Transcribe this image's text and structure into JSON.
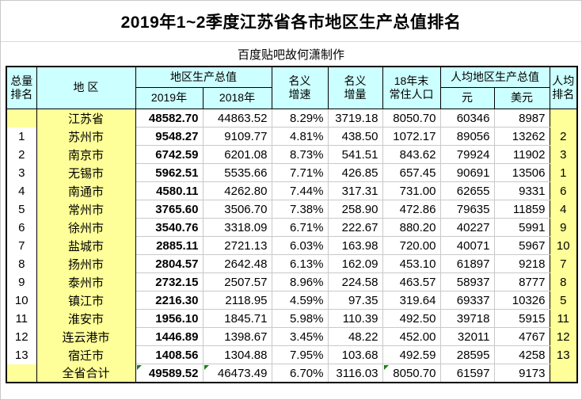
{
  "colors": {
    "header_bg": "#CCFFFF",
    "highlight_bg": "#FFFF99",
    "grid_line": "#C9C9C9",
    "table_border": "#000000",
    "comment_flag_green": "#1A7A1A"
  },
  "chart_data": {
    "type": "table",
    "title": "2019年1~2季度江苏省各市地区生产总值排名",
    "subtitle": "百度贴吧故何潇制作",
    "header": {
      "rank_total": [
        "总量",
        "排名"
      ],
      "region": "地 区",
      "gdp_group": "地区生产总值",
      "gdp_2019": "2019年",
      "gdp_2018": "2018年",
      "growth": [
        "名义",
        "增速"
      ],
      "increment": [
        "名义",
        "增量"
      ],
      "population": [
        "18年末",
        "常住人口"
      ],
      "percap_group": "人均地区生产总值",
      "percap_yuan": "元",
      "percap_usd": "美元",
      "rank_percap": [
        "人均",
        "排名"
      ]
    },
    "rows": [
      {
        "total_rank": "",
        "region": "江苏省",
        "gdp_2019": "48582.70",
        "gdp_2018": "44863.52",
        "growth": "8.29%",
        "increment": "3719.18",
        "population": "8050.70",
        "percap_yuan": "60346",
        "percap_usd": "8987",
        "percap_rank": "",
        "flags": []
      },
      {
        "total_rank": "1",
        "region": "苏州市",
        "gdp_2019": "9548.27",
        "gdp_2018": "9109.77",
        "growth": "4.81%",
        "increment": "438.50",
        "population": "1072.17",
        "percap_yuan": "89056",
        "percap_usd": "13262",
        "percap_rank": "2",
        "flags": []
      },
      {
        "total_rank": "2",
        "region": "南京市",
        "gdp_2019": "6742.59",
        "gdp_2018": "6201.08",
        "growth": "8.73%",
        "increment": "541.51",
        "population": "843.62",
        "percap_yuan": "79924",
        "percap_usd": "11902",
        "percap_rank": "3",
        "flags": []
      },
      {
        "total_rank": "3",
        "region": "无锡市",
        "gdp_2019": "5962.51",
        "gdp_2018": "5535.66",
        "growth": "7.71%",
        "increment": "426.85",
        "population": "657.45",
        "percap_yuan": "90691",
        "percap_usd": "13506",
        "percap_rank": "1",
        "flags": []
      },
      {
        "total_rank": "4",
        "region": "南通市",
        "gdp_2019": "4580.11",
        "gdp_2018": "4262.80",
        "growth": "7.44%",
        "increment": "317.31",
        "population": "731.00",
        "percap_yuan": "62655",
        "percap_usd": "9331",
        "percap_rank": "6",
        "flags": []
      },
      {
        "total_rank": "5",
        "region": "常州市",
        "gdp_2019": "3765.60",
        "gdp_2018": "3506.70",
        "growth": "7.38%",
        "increment": "258.90",
        "population": "472.86",
        "percap_yuan": "79635",
        "percap_usd": "11859",
        "percap_rank": "4",
        "flags": []
      },
      {
        "total_rank": "6",
        "region": "徐州市",
        "gdp_2019": "3540.76",
        "gdp_2018": "3318.09",
        "growth": "6.71%",
        "increment": "222.67",
        "population": "880.20",
        "percap_yuan": "40227",
        "percap_usd": "5991",
        "percap_rank": "9",
        "flags": []
      },
      {
        "total_rank": "7",
        "region": "盐城市",
        "gdp_2019": "2885.11",
        "gdp_2018": "2721.13",
        "growth": "6.03%",
        "increment": "163.98",
        "population": "720.00",
        "percap_yuan": "40071",
        "percap_usd": "5967",
        "percap_rank": "10",
        "flags": []
      },
      {
        "total_rank": "8",
        "region": "扬州市",
        "gdp_2019": "2804.57",
        "gdp_2018": "2642.48",
        "growth": "6.13%",
        "increment": "162.09",
        "population": "453.10",
        "percap_yuan": "61897",
        "percap_usd": "9218",
        "percap_rank": "7",
        "flags": []
      },
      {
        "total_rank": "9",
        "region": "泰州市",
        "gdp_2019": "2732.15",
        "gdp_2018": "2507.57",
        "growth": "8.96%",
        "increment": "224.58",
        "population": "463.57",
        "percap_yuan": "58937",
        "percap_usd": "8777",
        "percap_rank": "8",
        "flags": []
      },
      {
        "total_rank": "10",
        "region": "镇江市",
        "gdp_2019": "2216.30",
        "gdp_2018": "2118.95",
        "growth": "4.59%",
        "increment": "97.35",
        "population": "319.64",
        "percap_yuan": "69337",
        "percap_usd": "10326",
        "percap_rank": "5",
        "flags": []
      },
      {
        "total_rank": "11",
        "region": "淮安市",
        "gdp_2019": "1956.10",
        "gdp_2018": "1845.71",
        "growth": "5.98%",
        "increment": "110.39",
        "population": "492.50",
        "percap_yuan": "39718",
        "percap_usd": "5915",
        "percap_rank": "11",
        "flags": []
      },
      {
        "total_rank": "12",
        "region": "连云港市",
        "gdp_2019": "1446.89",
        "gdp_2018": "1398.67",
        "growth": "3.45%",
        "increment": "48.22",
        "population": "452.00",
        "percap_yuan": "32011",
        "percap_usd": "4767",
        "percap_rank": "12",
        "flags": []
      },
      {
        "total_rank": "13",
        "region": "宿迁市",
        "gdp_2019": "1408.56",
        "gdp_2018": "1304.88",
        "growth": "7.95%",
        "increment": "103.68",
        "population": "492.59",
        "percap_yuan": "28595",
        "percap_usd": "4258",
        "percap_rank": "13",
        "flags": []
      },
      {
        "total_rank": "",
        "region": "全省合计",
        "gdp_2019": "49589.52",
        "gdp_2018": "46473.49",
        "growth": "6.70%",
        "increment": "3116.03",
        "population": "8050.70",
        "percap_yuan": "61597",
        "percap_usd": "9173",
        "percap_rank": "",
        "flags": [
          "gdp_2019",
          "gdp_2018",
          "population"
        ]
      }
    ]
  }
}
